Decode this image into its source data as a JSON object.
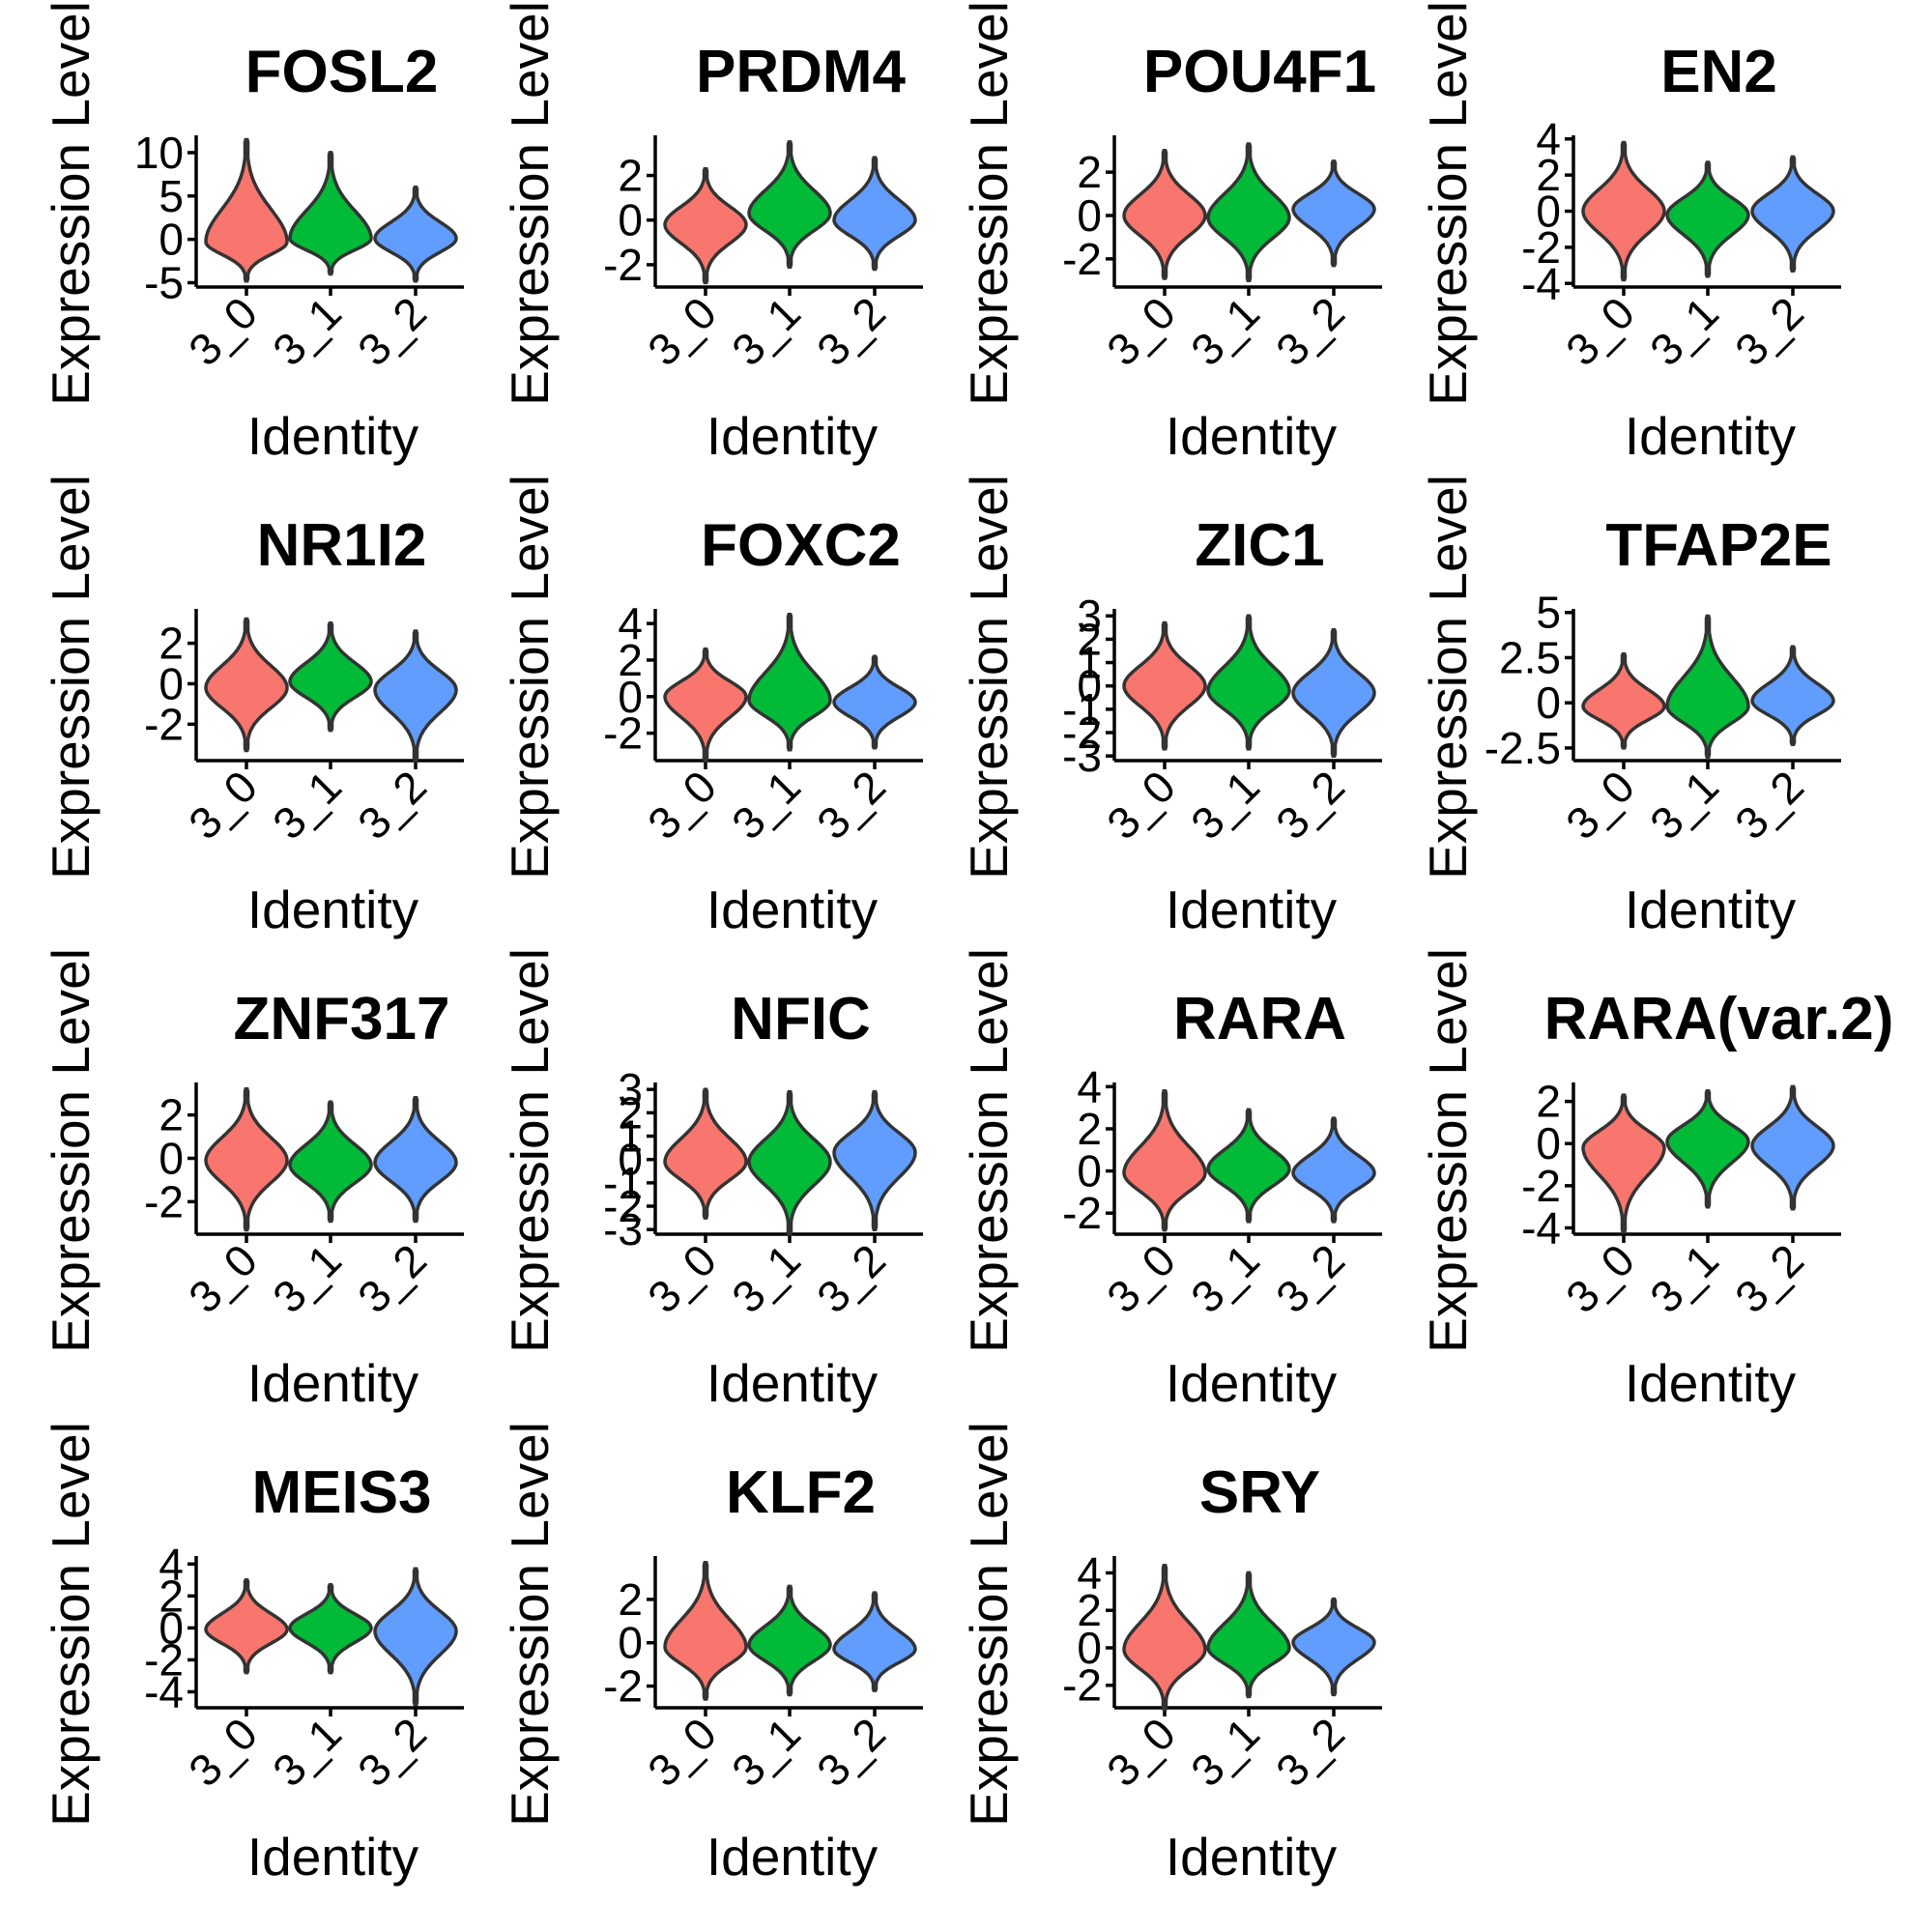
{
  "chart_data": [
    {
      "type": "violin",
      "title": "FOSL2",
      "xlabel": "Identity",
      "ylabel": "Expression Level",
      "categories": [
        "3_0",
        "3_1",
        "3_2"
      ],
      "yticks": [
        10,
        5,
        0,
        -5
      ],
      "ylim": [
        -5.5,
        12
      ],
      "series": [
        {
          "category": "3_0",
          "color": "#F8766D",
          "min": -4.8,
          "max": 11.5,
          "center": -0.3
        },
        {
          "category": "3_1",
          "color": "#00BA38",
          "min": -4.0,
          "max": 10.0,
          "center": 0.1
        },
        {
          "category": "3_2",
          "color": "#619CFF",
          "min": -4.8,
          "max": 6.0,
          "center": 0.1
        }
      ]
    },
    {
      "type": "violin",
      "title": "PRDM4",
      "xlabel": "Identity",
      "ylabel": "Expression Level",
      "categories": [
        "3_0",
        "3_1",
        "3_2"
      ],
      "yticks": [
        2,
        0,
        -2
      ],
      "ylim": [
        -3,
        3.8
      ],
      "series": [
        {
          "category": "3_0",
          "color": "#F8766D",
          "min": -2.8,
          "max": 2.3,
          "center": -0.2
        },
        {
          "category": "3_1",
          "color": "#00BA38",
          "min": -2.1,
          "max": 3.5,
          "center": 0.3
        },
        {
          "category": "3_2",
          "color": "#619CFF",
          "min": -2.2,
          "max": 2.8,
          "center": 0.0
        }
      ]
    },
    {
      "type": "violin",
      "title": "POU4F1",
      "xlabel": "Identity",
      "ylabel": "Expression Level",
      "categories": [
        "3_0",
        "3_1",
        "3_2"
      ],
      "yticks": [
        2,
        0,
        -2
      ],
      "ylim": [
        -3.3,
        3.7
      ],
      "series": [
        {
          "category": "3_0",
          "color": "#F8766D",
          "min": -2.9,
          "max": 3.0,
          "center": 0.0
        },
        {
          "category": "3_1",
          "color": "#00BA38",
          "min": -3.0,
          "max": 3.3,
          "center": -0.1
        },
        {
          "category": "3_2",
          "color": "#619CFF",
          "min": -2.3,
          "max": 2.5,
          "center": 0.3
        }
      ]
    },
    {
      "type": "violin",
      "title": "EN2",
      "xlabel": "Identity",
      "ylabel": "Expression Level",
      "categories": [
        "3_0",
        "3_1",
        "3_2"
      ],
      "yticks": [
        4,
        2,
        0,
        -2,
        -4
      ],
      "ylim": [
        -4.2,
        4.2
      ],
      "series": [
        {
          "category": "3_0",
          "color": "#F8766D",
          "min": -3.8,
          "max": 3.8,
          "center": 0.0
        },
        {
          "category": "3_1",
          "color": "#00BA38",
          "min": -3.6,
          "max": 2.7,
          "center": -0.2
        },
        {
          "category": "3_2",
          "color": "#619CFF",
          "min": -3.3,
          "max": 3.0,
          "center": 0.0
        }
      ]
    },
    {
      "type": "violin",
      "title": "NR1I2",
      "xlabel": "Identity",
      "ylabel": "Expression Level",
      "categories": [
        "3_0",
        "3_1",
        "3_2"
      ],
      "yticks": [
        2,
        0,
        -2
      ],
      "ylim": [
        -3.8,
        3.7
      ],
      "series": [
        {
          "category": "3_0",
          "color": "#F8766D",
          "min": -3.3,
          "max": 3.2,
          "center": -0.2
        },
        {
          "category": "3_1",
          "color": "#00BA38",
          "min": -2.3,
          "max": 3.0,
          "center": 0.1
        },
        {
          "category": "3_2",
          "color": "#619CFF",
          "min": -3.8,
          "max": 2.6,
          "center": -0.3
        }
      ]
    },
    {
      "type": "violin",
      "title": "FOXC2",
      "xlabel": "Identity",
      "ylabel": "Expression Level",
      "categories": [
        "3_0",
        "3_1",
        "3_2"
      ],
      "yticks": [
        4,
        2,
        0,
        -2
      ],
      "ylim": [
        -3.5,
        4.8
      ],
      "series": [
        {
          "category": "3_0",
          "color": "#F8766D",
          "min": -3.5,
          "max": 2.6,
          "center": 0.0
        },
        {
          "category": "3_1",
          "color": "#00BA38",
          "min": -2.9,
          "max": 4.5,
          "center": -0.2
        },
        {
          "category": "3_2",
          "color": "#619CFF",
          "min": -2.8,
          "max": 2.2,
          "center": -0.3
        }
      ]
    },
    {
      "type": "violin",
      "title": "ZIC1",
      "xlabel": "Identity",
      "ylabel": "Expression Level",
      "categories": [
        "3_0",
        "3_1",
        "3_2"
      ],
      "yticks": [
        3,
        2,
        1,
        0,
        -1,
        -2,
        -3
      ],
      "ylim": [
        -3.2,
        3.3
      ],
      "series": [
        {
          "category": "3_0",
          "color": "#F8766D",
          "min": -2.7,
          "max": 2.7,
          "center": 0.0
        },
        {
          "category": "3_1",
          "color": "#00BA38",
          "min": -2.7,
          "max": 3.0,
          "center": -0.2
        },
        {
          "category": "3_2",
          "color": "#619CFF",
          "min": -3.0,
          "max": 2.4,
          "center": -0.3
        }
      ]
    },
    {
      "type": "violin",
      "title": "TFAP2E",
      "xlabel": "Identity",
      "ylabel": "Expression Level",
      "categories": [
        "3_0",
        "3_1",
        "3_2"
      ],
      "yticks": [
        5.0,
        2.5,
        0.0,
        -2.5
      ],
      "ylim": [
        -3.2,
        5.2
      ],
      "series": [
        {
          "category": "3_0",
          "color": "#F8766D",
          "min": -2.5,
          "max": 2.7,
          "center": -0.2
        },
        {
          "category": "3_1",
          "color": "#00BA38",
          "min": -3.0,
          "max": 4.8,
          "center": -0.2
        },
        {
          "category": "3_2",
          "color": "#619CFF",
          "min": -2.3,
          "max": 3.1,
          "center": 0.1
        }
      ]
    },
    {
      "type": "violin",
      "title": "ZNF317",
      "xlabel": "Identity",
      "ylabel": "Expression Level",
      "categories": [
        "3_0",
        "3_1",
        "3_2"
      ],
      "yticks": [
        2,
        0,
        -2
      ],
      "ylim": [
        -3.5,
        3.5
      ],
      "series": [
        {
          "category": "3_0",
          "color": "#F8766D",
          "min": -3.3,
          "max": 3.2,
          "center": -0.1
        },
        {
          "category": "3_1",
          "color": "#00BA38",
          "min": -2.9,
          "max": 2.6,
          "center": -0.3
        },
        {
          "category": "3_2",
          "color": "#619CFF",
          "min": -2.9,
          "max": 2.8,
          "center": -0.2
        }
      ]
    },
    {
      "type": "violin",
      "title": "NFIC",
      "xlabel": "Identity",
      "ylabel": "Expression Level",
      "categories": [
        "3_0",
        "3_1",
        "3_2"
      ],
      "yticks": [
        3,
        2,
        1,
        0,
        -1,
        -2,
        -3
      ],
      "ylim": [
        -3.2,
        3.3
      ],
      "series": [
        {
          "category": "3_0",
          "color": "#F8766D",
          "min": -2.5,
          "max": 3.0,
          "center": -0.1
        },
        {
          "category": "3_1",
          "color": "#00BA38",
          "min": -3.2,
          "max": 2.9,
          "center": -0.1
        },
        {
          "category": "3_2",
          "color": "#619CFF",
          "min": -3.0,
          "max": 2.9,
          "center": 0.3
        }
      ]
    },
    {
      "type": "violin",
      "title": "RARA",
      "xlabel": "Identity",
      "ylabel": "Expression Level",
      "categories": [
        "3_0",
        "3_1",
        "3_2"
      ],
      "yticks": [
        4,
        2,
        0,
        -2
      ],
      "ylim": [
        -3,
        4.2
      ],
      "series": [
        {
          "category": "3_0",
          "color": "#F8766D",
          "min": -2.8,
          "max": 3.8,
          "center": -0.1
        },
        {
          "category": "3_1",
          "color": "#00BA38",
          "min": -2.4,
          "max": 2.9,
          "center": 0.1
        },
        {
          "category": "3_2",
          "color": "#619CFF",
          "min": -2.4,
          "max": 2.5,
          "center": -0.1
        }
      ]
    },
    {
      "type": "violin",
      "title": "RARA(var.2)",
      "xlabel": "Identity",
      "ylabel": "Expression Level",
      "categories": [
        "3_0",
        "3_1",
        "3_2"
      ],
      "yticks": [
        2,
        0,
        -2,
        -4
      ],
      "ylim": [
        -4.3,
        2.9
      ],
      "series": [
        {
          "category": "3_0",
          "color": "#F8766D",
          "min": -4.2,
          "max": 2.3,
          "center": -0.2
        },
        {
          "category": "3_1",
          "color": "#00BA38",
          "min": -3.0,
          "max": 2.5,
          "center": 0.1
        },
        {
          "category": "3_2",
          "color": "#619CFF",
          "min": -3.1,
          "max": 2.7,
          "center": -0.1
        }
      ]
    },
    {
      "type": "violin",
      "title": "MEIS3",
      "xlabel": "Identity",
      "ylabel": "Expression Level",
      "categories": [
        "3_0",
        "3_1",
        "3_2"
      ],
      "yticks": [
        4,
        2,
        0,
        -2,
        -4
      ],
      "ylim": [
        -5,
        4.5
      ],
      "series": [
        {
          "category": "3_0",
          "color": "#F8766D",
          "min": -2.8,
          "max": 3.0,
          "center": -0.1
        },
        {
          "category": "3_1",
          "color": "#00BA38",
          "min": -2.8,
          "max": 2.7,
          "center": 0.0
        },
        {
          "category": "3_2",
          "color": "#619CFF",
          "min": -4.8,
          "max": 3.7,
          "center": -0.2
        }
      ]
    },
    {
      "type": "violin",
      "title": "KLF2",
      "xlabel": "Identity",
      "ylabel": "Expression Level",
      "categories": [
        "3_0",
        "3_1",
        "3_2"
      ],
      "yticks": [
        2,
        0,
        -2
      ],
      "ylim": [
        -3,
        4
      ],
      "series": [
        {
          "category": "3_0",
          "color": "#F8766D",
          "min": -2.6,
          "max": 3.7,
          "center": -0.2
        },
        {
          "category": "3_1",
          "color": "#00BA38",
          "min": -2.4,
          "max": 2.6,
          "center": -0.1
        },
        {
          "category": "3_2",
          "color": "#619CFF",
          "min": -2.2,
          "max": 2.3,
          "center": -0.3
        }
      ]
    },
    {
      "type": "violin",
      "title": "SRY",
      "xlabel": "Identity",
      "ylabel": "Expression Level",
      "categories": [
        "3_0",
        "3_1",
        "3_2"
      ],
      "yticks": [
        4,
        2,
        0,
        -2
      ],
      "ylim": [
        -3.2,
        4.9
      ],
      "series": [
        {
          "category": "3_0",
          "color": "#F8766D",
          "min": -3.3,
          "max": 4.4,
          "center": -0.1
        },
        {
          "category": "3_1",
          "color": "#00BA38",
          "min": -2.6,
          "max": 4.0,
          "center": 0.0
        },
        {
          "category": "3_2",
          "color": "#619CFF",
          "min": -2.5,
          "max": 2.6,
          "center": 0.3
        }
      ]
    }
  ]
}
